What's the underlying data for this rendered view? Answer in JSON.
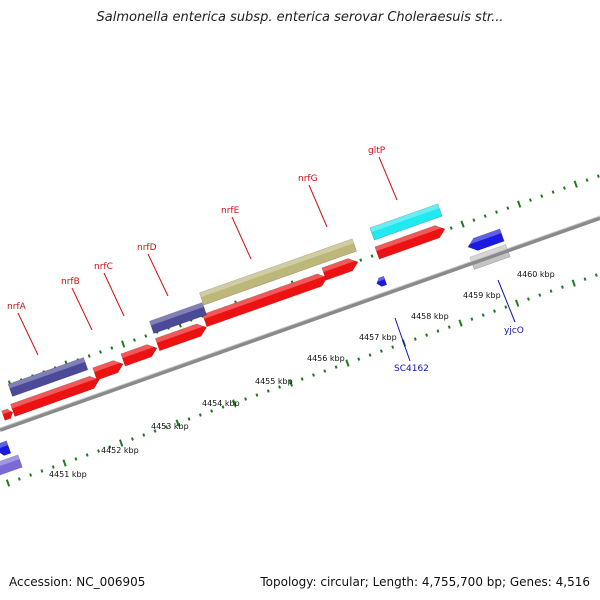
{
  "title": "Salmonella enterica subsp. enterica serovar Choleraesuis str...",
  "footer": {
    "accession": "Accession: NC_006905",
    "stats": "Topology: circular; Length: 4,755,700 bp; Genes: 4,516"
  },
  "colors": {
    "backbone": "#8a8a8a",
    "tick": "#1e7a1e",
    "label_red": "#d01010",
    "label_blue": "#1010c0",
    "gene_red": "#ee1111",
    "gene_navy": "#4a4a98",
    "gene_olive": "#bdb87a",
    "gene_cyan": "#22e8f0",
    "gene_blue": "#1a1ae0",
    "gene_gray": "#c4c4c4"
  },
  "ticks": [
    {
      "label": "4451 kbp"
    },
    {
      "label": "4452 kbp"
    },
    {
      "label": "4453 kbp"
    },
    {
      "label": "4454 kbp"
    },
    {
      "label": "4455 kbp"
    },
    {
      "label": "4456 kbp"
    },
    {
      "label": "4457 kbp"
    },
    {
      "label": "4458 kbp"
    },
    {
      "label": "4459 kbp"
    },
    {
      "label": "4460 kbp"
    }
  ],
  "gene_labels": [
    {
      "name": "nrfA",
      "color": "red"
    },
    {
      "name": "nrfB",
      "color": "red"
    },
    {
      "name": "nrfC",
      "color": "red"
    },
    {
      "name": "nrfD",
      "color": "red"
    },
    {
      "name": "nrfE",
      "color": "red"
    },
    {
      "name": "nrfG",
      "color": "red"
    },
    {
      "name": "gltP",
      "color": "red"
    },
    {
      "name": "SC4162",
      "color": "blue"
    },
    {
      "name": "yjcO",
      "color": "blue"
    }
  ]
}
